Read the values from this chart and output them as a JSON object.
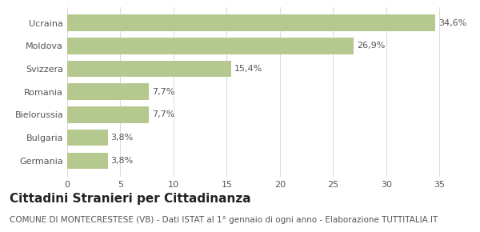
{
  "categories": [
    "Germania",
    "Bulgaria",
    "Bielorussia",
    "Romania",
    "Svizzera",
    "Moldova",
    "Ucraina"
  ],
  "values": [
    3.8,
    3.8,
    7.7,
    7.7,
    15.4,
    26.9,
    34.6
  ],
  "labels": [
    "3,8%",
    "3,8%",
    "7,7%",
    "7,7%",
    "15,4%",
    "26,9%",
    "34,6%"
  ],
  "bar_color": "#b5c98e",
  "background_color": "#ffffff",
  "xlim": [
    0,
    37
  ],
  "xticks": [
    0,
    5,
    10,
    15,
    20,
    25,
    30,
    35
  ],
  "title": "Cittadini Stranieri per Cittadinanza",
  "subtitle": "COMUNE DI MONTECRESTESE (VB) - Dati ISTAT al 1° gennaio di ogni anno - Elaborazione TUTTITALIA.IT",
  "title_fontsize": 11,
  "subtitle_fontsize": 7.5,
  "label_fontsize": 8,
  "ytick_fontsize": 8,
  "xtick_fontsize": 8,
  "grid_color": "#dddddd",
  "text_color": "#555555",
  "title_color": "#222222"
}
